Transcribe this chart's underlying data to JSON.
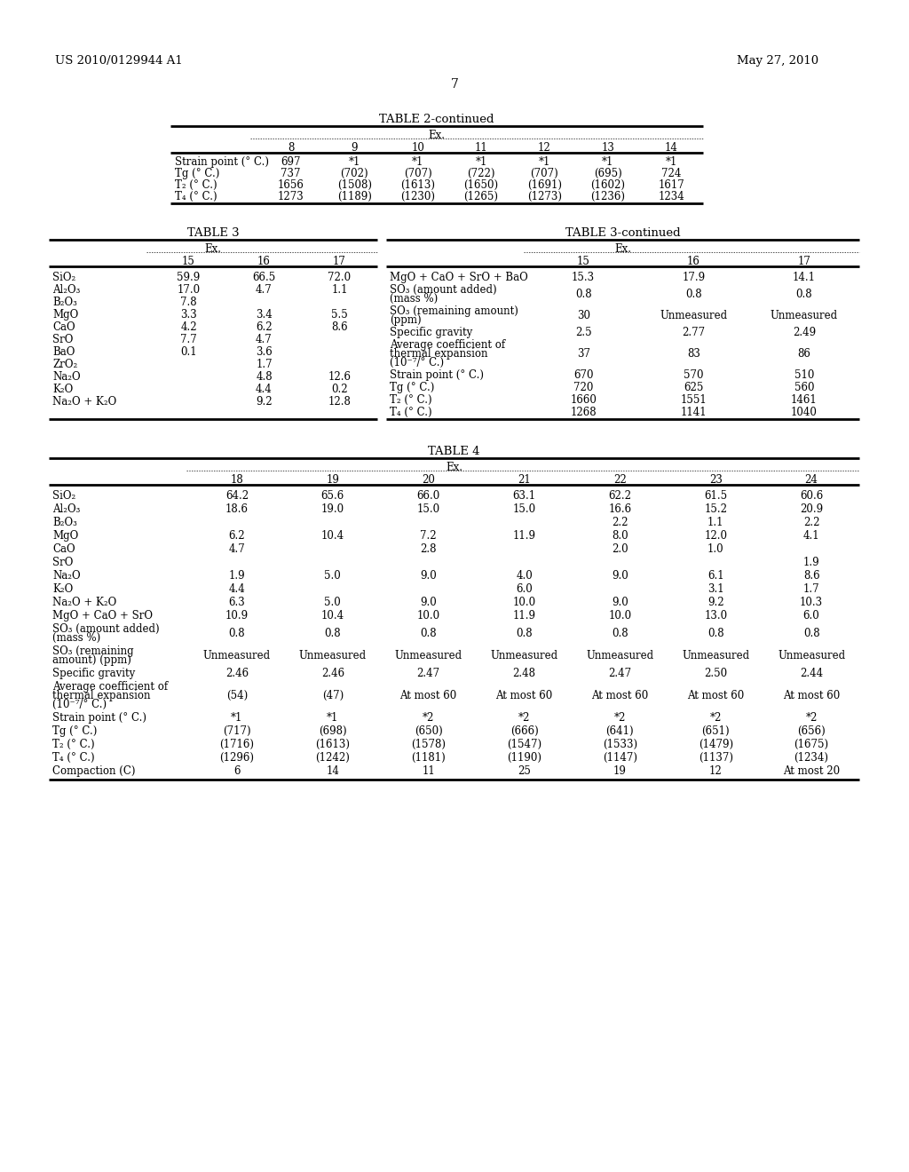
{
  "page_number": "7",
  "patent_left": "US 2010/0129944 A1",
  "patent_right": "May 27, 2010",
  "background_color": "#ffffff",
  "text_color": "#000000",
  "font_size": 8.5,
  "table2c_title": "TABLE 2-continued",
  "table2c_ex_header": "Ex.",
  "table2c_cols": [
    "",
    "8",
    "9",
    "10",
    "11",
    "12",
    "13",
    "14"
  ],
  "table2c_rows": [
    [
      "Strain point (° C.)",
      "697",
      "*1",
      "*1",
      "*1",
      "*1",
      "*1",
      "*1"
    ],
    [
      "Tg (° C.)",
      "737",
      "(702)",
      "(707)",
      "(722)",
      "(707)",
      "(695)",
      "724"
    ],
    [
      "T₂ (° C.)",
      "1656",
      "(1508)",
      "(1613)",
      "(1650)",
      "(1691)",
      "(1602)",
      "1617"
    ],
    [
      "T₄ (° C.)",
      "1273",
      "(1189)",
      "(1230)",
      "(1265)",
      "(1273)",
      "(1236)",
      "1234"
    ]
  ],
  "table3_title": "TABLE 3",
  "table3_ex_header": "Ex.",
  "table3_cols": [
    "",
    "15",
    "16",
    "17"
  ],
  "table3_rows": [
    [
      "SiO₂",
      "59.9",
      "66.5",
      "72.0"
    ],
    [
      "Al₂O₃",
      "17.0",
      "4.7",
      "1.1"
    ],
    [
      "B₂O₃",
      "7.8",
      "",
      ""
    ],
    [
      "MgO",
      "3.3",
      "3.4",
      "5.5"
    ],
    [
      "CaO",
      "4.2",
      "6.2",
      "8.6"
    ],
    [
      "SrO",
      "7.7",
      "4.7",
      ""
    ],
    [
      "BaO",
      "0.1",
      "3.6",
      ""
    ],
    [
      "ZrO₂",
      "",
      "1.7",
      ""
    ],
    [
      "Na₂O",
      "",
      "4.8",
      "12.6"
    ],
    [
      "K₂O",
      "",
      "4.4",
      "0.2"
    ],
    [
      "Na₂O + K₂O",
      "",
      "9.2",
      "12.8"
    ]
  ],
  "table3c_title": "TABLE 3-continued",
  "table3c_ex_header": "Ex.",
  "table3c_cols": [
    "",
    "15",
    "16",
    "17"
  ],
  "table3c_rows": [
    [
      "MgO + CaO + SrO + BaO",
      "15.3",
      "17.9",
      "14.1"
    ],
    [
      "SO₃ (amount added)\n(mass %)",
      "0.8",
      "0.8",
      "0.8"
    ],
    [
      "SO₃ (remaining amount)\n(ppm)",
      "30",
      "Unmeasured",
      "Unmeasured"
    ],
    [
      "Specific gravity",
      "2.5",
      "2.77",
      "2.49"
    ],
    [
      "Average coefficient of\nthermal expansion\n(10⁻⁷/° C.)",
      "37",
      "83",
      "86"
    ],
    [
      "Strain point (° C.)",
      "670",
      "570",
      "510"
    ],
    [
      "Tg (° C.)",
      "720",
      "625",
      "560"
    ],
    [
      "T₂ (° C.)",
      "1660",
      "1551",
      "1461"
    ],
    [
      "T₄ (° C.)",
      "1268",
      "1141",
      "1040"
    ]
  ],
  "table4_title": "TABLE 4",
  "table4_ex_header": "Ex.",
  "table4_cols": [
    "",
    "18",
    "19",
    "20",
    "21",
    "22",
    "23",
    "24"
  ],
  "table4_rows": [
    [
      "SiO₂",
      "64.2",
      "65.6",
      "66.0",
      "63.1",
      "62.2",
      "61.5",
      "60.6"
    ],
    [
      "Al₂O₃",
      "18.6",
      "19.0",
      "15.0",
      "15.0",
      "16.6",
      "15.2",
      "20.9"
    ],
    [
      "B₂O₃",
      "",
      "",
      "",
      "",
      "2.2",
      "1.1",
      "2.2"
    ],
    [
      "MgO",
      "6.2",
      "10.4",
      "7.2",
      "11.9",
      "8.0",
      "12.0",
      "4.1"
    ],
    [
      "CaO",
      "4.7",
      "",
      "2.8",
      "",
      "2.0",
      "1.0",
      ""
    ],
    [
      "SrO",
      "",
      "",
      "",
      "",
      "",
      "",
      "1.9"
    ],
    [
      "Na₂O",
      "1.9",
      "5.0",
      "9.0",
      "4.0",
      "9.0",
      "6.1",
      "8.6"
    ],
    [
      "K₂O",
      "4.4",
      "",
      "",
      "6.0",
      "",
      "3.1",
      "1.7"
    ],
    [
      "Na₂O + K₂O",
      "6.3",
      "5.0",
      "9.0",
      "10.0",
      "9.0",
      "9.2",
      "10.3"
    ],
    [
      "MgO + CaO + SrO",
      "10.9",
      "10.4",
      "10.0",
      "11.9",
      "10.0",
      "13.0",
      "6.0"
    ],
    [
      "SO₃ (amount added)\n(mass %)",
      "0.8",
      "0.8",
      "0.8",
      "0.8",
      "0.8",
      "0.8",
      "0.8"
    ],
    [
      "SO₃ (remaining\namount) (ppm)",
      "Unmeasured",
      "Unmeasured",
      "Unmeasured",
      "Unmeasured",
      "Unmeasured",
      "Unmeasured",
      "Unmeasured"
    ],
    [
      "Specific gravity",
      "2.46",
      "2.46",
      "2.47",
      "2.48",
      "2.47",
      "2.50",
      "2.44"
    ],
    [
      "Average coefficient of\nthermal expansion\n(10⁻⁷/° C.)",
      "(54)",
      "(47)",
      "At most 60",
      "At most 60",
      "At most 60",
      "At most 60",
      "At most 60"
    ],
    [
      "Strain point (° C.)",
      "*1",
      "*1",
      "*2",
      "*2",
      "*2",
      "*2",
      "*2"
    ],
    [
      "Tg (° C.)",
      "(717)",
      "(698)",
      "(650)",
      "(666)",
      "(641)",
      "(651)",
      "(656)"
    ],
    [
      "T₂ (° C.)",
      "(1716)",
      "(1613)",
      "(1578)",
      "(1547)",
      "(1533)",
      "(1479)",
      "(1675)"
    ],
    [
      "T₄ (° C.)",
      "(1296)",
      "(1242)",
      "(1181)",
      "(1190)",
      "(1147)",
      "(1137)",
      "(1234)"
    ],
    [
      "Compaction (C)",
      "6",
      "14",
      "11",
      "25",
      "19",
      "12",
      "At most 20"
    ]
  ]
}
